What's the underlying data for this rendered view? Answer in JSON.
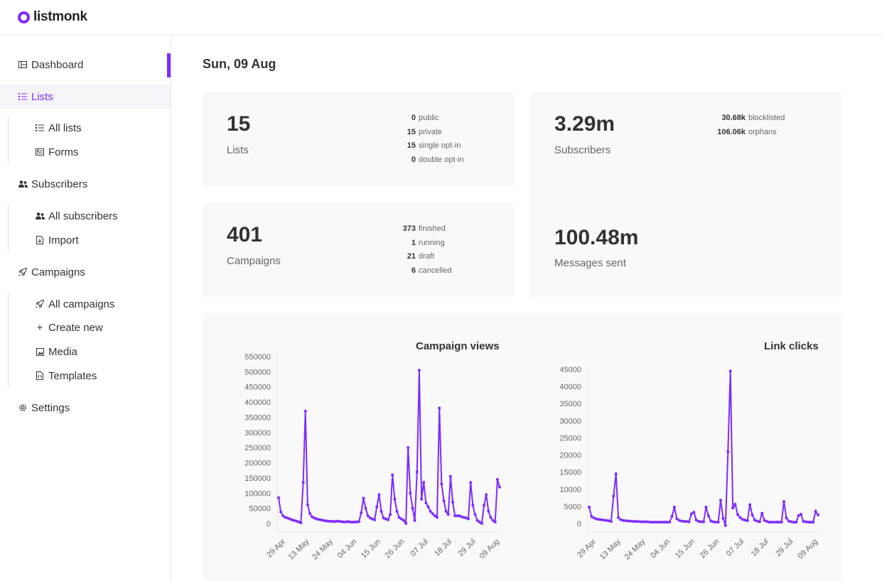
{
  "app": {
    "name": "listmonk"
  },
  "sidebar": {
    "items": [
      {
        "label": "Dashboard",
        "icon": "dashboard-icon"
      },
      {
        "label": "Lists",
        "icon": "list-icon"
      },
      {
        "label": "All lists",
        "icon": "list-icon"
      },
      {
        "label": "Forms",
        "icon": "form-icon"
      },
      {
        "label": "Subscribers",
        "icon": "users-icon"
      },
      {
        "label": "All subscribers",
        "icon": "users-icon"
      },
      {
        "label": "Import",
        "icon": "file-import-icon"
      },
      {
        "label": "Campaigns",
        "icon": "rocket-icon"
      },
      {
        "label": "All campaigns",
        "icon": "rocket-icon"
      },
      {
        "label": "Create new",
        "icon": "plus-icon"
      },
      {
        "label": "Media",
        "icon": "image-icon"
      },
      {
        "label": "Templates",
        "icon": "file-code-icon"
      },
      {
        "label": "Settings",
        "icon": "gear-icon"
      }
    ],
    "active": "Lists",
    "accent": "#7f2aff"
  },
  "dashboard": {
    "date": "Sun, 09 Aug",
    "lists": {
      "count": "15",
      "label": "Lists",
      "stats": [
        {
          "n": "0",
          "t": "public"
        },
        {
          "n": "15",
          "t": "private"
        },
        {
          "n": "15",
          "t": "single opt-in"
        },
        {
          "n": "0",
          "t": "double opt-in"
        }
      ]
    },
    "subscribers": {
      "count": "3.29m",
      "label": "Subscribers",
      "stats": [
        {
          "n": "30.68k",
          "t": "blocklisted"
        },
        {
          "n": "106.06k",
          "t": "orphans"
        }
      ]
    },
    "campaigns": {
      "count": "401",
      "label": "Campaigns",
      "stats": [
        {
          "n": "373",
          "t": "finished"
        },
        {
          "n": "1",
          "t": "running"
        },
        {
          "n": "21",
          "t": "draft"
        },
        {
          "n": "6",
          "t": "cancelled"
        }
      ]
    },
    "messages": {
      "count": "100.48m",
      "label": "Messages sent"
    }
  },
  "chart_data": [
    {
      "type": "line",
      "title": "Campaign views",
      "color": "#7f2aff",
      "ylim": [
        0,
        550000
      ],
      "yticks": [
        "550000",
        "500000",
        "450000",
        "400000",
        "350000",
        "300000",
        "250000",
        "200000",
        "150000",
        "100000",
        "50000",
        "0"
      ],
      "xticks": [
        "29 Apr",
        "13 May",
        "24 May",
        "04 Jun",
        "15 Jun",
        "26 Jun",
        "07 Jul",
        "18 Jul",
        "29 Jul",
        "09 Aug"
      ],
      "values": [
        85000,
        38000,
        25000,
        20000,
        18000,
        15000,
        12000,
        10000,
        8000,
        5000,
        2000,
        135000,
        370000,
        62000,
        33000,
        22000,
        18000,
        15000,
        13000,
        12000,
        10000,
        9000,
        8000,
        7000,
        7000,
        6000,
        8000,
        7000,
        6000,
        5000,
        5000,
        6000,
        5000,
        4000,
        5000,
        5000,
        6000,
        35000,
        83000,
        50000,
        25000,
        18000,
        15000,
        12000,
        55000,
        95000,
        40000,
        18000,
        15000,
        12000,
        30000,
        160000,
        80000,
        40000,
        20000,
        15000,
        10000,
        0,
        250000,
        100000,
        50000,
        10000,
        170000,
        505000,
        80000,
        135000,
        68000,
        55000,
        40000,
        32000,
        25000,
        20000,
        380000,
        130000,
        75000,
        40000,
        30000,
        155000,
        70000,
        25000,
        25000,
        25000,
        22000,
        20000,
        18000,
        15000,
        135000,
        60000,
        30000,
        10000,
        5000,
        0,
        60000,
        95000,
        40000,
        20000,
        10000,
        5000,
        145000,
        120000
      ]
    },
    {
      "type": "line",
      "title": "Link clicks",
      "color": "#7f2aff",
      "ylim": [
        0,
        45000
      ],
      "yticks": [
        "45000",
        "40000",
        "35000",
        "30000",
        "25000",
        "20000",
        "15000",
        "10000",
        "5000",
        "0"
      ],
      "xticks": [
        "29 Apr",
        "13 May",
        "24 May",
        "04 Jun",
        "15 Jun",
        "26 Jun",
        "07 Jul",
        "18 Jul",
        "29 Jul",
        "09 Aug"
      ],
      "values": [
        4800,
        2000,
        1600,
        1300,
        1200,
        1100,
        1000,
        900,
        800,
        600,
        8000,
        14500,
        1700,
        1100,
        900,
        800,
        700,
        700,
        600,
        600,
        600,
        500,
        500,
        500,
        500,
        400,
        400,
        400,
        400,
        400,
        400,
        400,
        400,
        400,
        2100,
        4800,
        1400,
        900,
        700,
        600,
        600,
        500,
        2800,
        3300,
        1000,
        600,
        500,
        500,
        4800,
        2200,
        700,
        500,
        400,
        400,
        6800,
        1500,
        -600,
        21000,
        44500,
        4500,
        5600,
        2600,
        1700,
        1200,
        1000,
        800,
        5500,
        2500,
        1000,
        700,
        500,
        3000,
        900,
        600,
        400,
        400,
        400,
        400,
        400,
        400,
        6400,
        1600,
        700,
        500,
        400,
        400,
        2300,
        2700,
        600,
        500,
        400,
        400,
        400,
        3600,
        2500
      ]
    }
  ]
}
